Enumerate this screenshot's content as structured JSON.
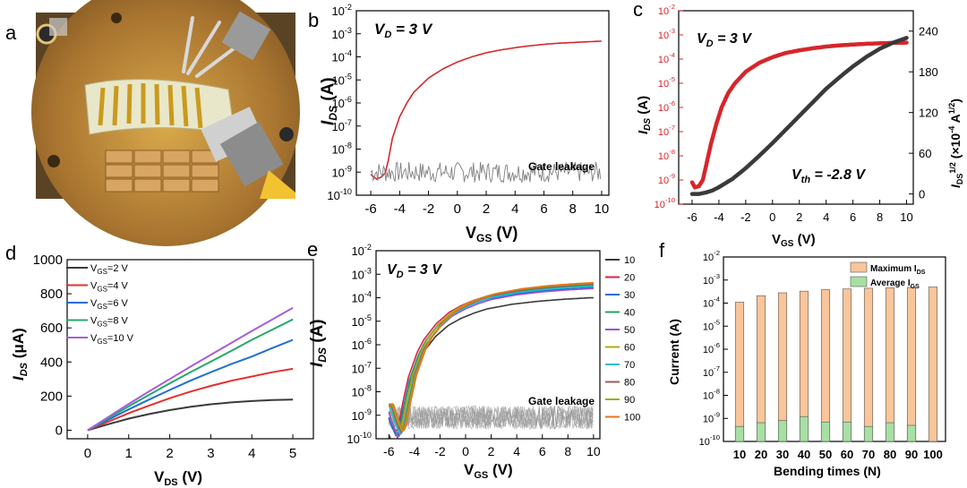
{
  "panels": {
    "a": {
      "letter": "a",
      "photo_description_icon": "probe-station-photo"
    },
    "b": {
      "letter": "b",
      "annotation": "V_D = 3 V",
      "ylabel": "I_DS (A)",
      "xlabel": "V_GS (V)",
      "leak_label": "Gate leakage"
    },
    "c": {
      "letter": "c",
      "annotation": "V_D = 3 V",
      "vth_label": "V_th = -2.8 V",
      "ylabel_left": "I_DS (A)",
      "ylabel_right": "I_DS^1/2 (×10^-4 A^1/2)",
      "xlabel": "V_GS (V)"
    },
    "d": {
      "letter": "d",
      "ylabel": "I_DS (μA)",
      "xlabel": "V_DS (V)"
    },
    "e": {
      "letter": "e",
      "annotation": "V_D = 3 V",
      "ylabel": "I_DS (A)",
      "xlabel": "V_GS (V)",
      "leak_label": "Gate leakage"
    },
    "f": {
      "letter": "f",
      "ylabel": "Current (A)",
      "xlabel": "Bending times (N)",
      "legend": [
        "Maximum I_DS",
        "Average I_GS"
      ]
    }
  },
  "colors": {
    "red": "#d6262b",
    "grey": "#7f7f7f",
    "dark": "#3a3a3a",
    "d_series": [
      "#3a3a3a",
      "#e3302f",
      "#1f6fd6",
      "#24a86b",
      "#a55fd8"
    ],
    "e_series": [
      "#3a3a3a",
      "#d8234a",
      "#1c6fd0",
      "#29a167",
      "#a24fd9",
      "#b5a80f",
      "#19c0d0",
      "#9a5c5c",
      "#8fb31a",
      "#e87417"
    ],
    "f_max": "#f9c59b",
    "f_avg": "#a8dfa3"
  },
  "chart_data": [
    {
      "panel": "b",
      "type": "line",
      "yscale": "log",
      "title": "",
      "xlabel": "V_GS (V)",
      "ylabel": "I_DS (A)",
      "xlim": [
        -7,
        10.5
      ],
      "ylim": [
        1e-10,
        0.01
      ],
      "xticks": [
        -6,
        -4,
        -2,
        0,
        2,
        4,
        6,
        8,
        10
      ],
      "yticks": [
        1e-10,
        1e-09,
        1e-08,
        1e-07,
        1e-06,
        1e-05,
        0.0001,
        0.001,
        0.01
      ],
      "series": [
        {
          "name": "I_DS",
          "color": "red",
          "x": [
            -6,
            -5.6,
            -5.3,
            -5.0,
            -4.8,
            -4.5,
            -4.0,
            -3.5,
            -3.0,
            -2.0,
            -1.0,
            0,
            1,
            2,
            3,
            4,
            5,
            6,
            7,
            8,
            9,
            10
          ],
          "y": [
            8e-10,
            5e-10,
            6e-10,
            9e-10,
            3e-09,
            3e-08,
            2.5e-07,
            1e-06,
            3e-06,
            1.2e-05,
            3e-05,
            6e-05,
            0.0001,
            0.00015,
            0.0002,
            0.00025,
            0.0003,
            0.00035,
            0.00039,
            0.00042,
            0.00045,
            0.00048
          ]
        },
        {
          "name": "Gate leakage",
          "color": "grey",
          "noise": true,
          "x_range": [
            -6,
            10
          ],
          "y_center": 1e-09,
          "y_spread_decades": 0.45
        }
      ]
    },
    {
      "panel": "c",
      "type": "line",
      "yscale": "log",
      "dual_axis": true,
      "xlabel": "V_GS (V)",
      "ylabel_left": "I_DS (A)",
      "ylabel_right": "I_DS^1/2 (×10^-4 A^1/2)",
      "xlim": [
        -7,
        10.5
      ],
      "ylim_left": [
        1e-10,
        0.01
      ],
      "ylim_right": [
        -15,
        270
      ],
      "xticks": [
        -6,
        -4,
        -2,
        0,
        2,
        4,
        6,
        8,
        10
      ],
      "yticks_left": [
        1e-10,
        1e-09,
        1e-08,
        1e-07,
        1e-06,
        1e-05,
        0.0001,
        0.001,
        0.01
      ],
      "yticks_right": [
        0,
        60,
        120,
        180,
        240
      ],
      "series": [
        {
          "name": "I_DS",
          "axis": "left",
          "color": "red",
          "x": [
            -6,
            -5.8,
            -5.5,
            -5.2,
            -5.0,
            -4.6,
            -4.2,
            -3.8,
            -3.3,
            -2.8,
            -2.0,
            -1.0,
            0,
            1,
            2,
            3,
            4,
            5,
            6,
            7,
            8,
            9,
            10
          ],
          "y": [
            8e-10,
            5e-10,
            5.5e-10,
            1e-09,
            3e-09,
            3e-08,
            2e-07,
            1e-06,
            4e-06,
            1e-05,
            3e-05,
            7e-05,
            0.00012,
            0.00018,
            0.00023,
            0.00028,
            0.00033,
            0.00037,
            0.0004,
            0.00043,
            0.00045,
            0.00047,
            0.00048
          ]
        },
        {
          "name": "sqrt(I_DS)",
          "axis": "right",
          "color": "dark",
          "x": [
            -6,
            -5.5,
            -5,
            -4.5,
            -4,
            -3,
            -2,
            -1,
            0,
            1,
            2,
            3,
            4,
            5,
            6,
            7,
            8,
            9,
            10
          ],
          "y": [
            0,
            0,
            2,
            5,
            10,
            22,
            38,
            56,
            75,
            95,
            115,
            135,
            155,
            172,
            188,
            202,
            214,
            223,
            230
          ]
        }
      ]
    },
    {
      "panel": "d",
      "type": "line",
      "xlabel": "V_DS (V)",
      "ylabel": "I_DS (μA)",
      "xlim": [
        -0.5,
        5.5
      ],
      "ylim": [
        -50,
        1000
      ],
      "xticks": [
        0,
        1,
        2,
        3,
        4,
        5
      ],
      "yticks": [
        0,
        200,
        400,
        600,
        800,
        1000
      ],
      "series": [
        {
          "name": "V_GS=2 V",
          "x": [
            0,
            0.5,
            1,
            1.5,
            2,
            2.5,
            3,
            3.5,
            4,
            4.5,
            5
          ],
          "y": [
            0,
            35,
            68,
            95,
            118,
            137,
            152,
            163,
            171,
            177,
            180
          ]
        },
        {
          "name": "V_GS=4 V",
          "x": [
            0,
            0.5,
            1,
            1.5,
            2,
            2.5,
            3,
            3.5,
            4,
            4.5,
            5
          ],
          "y": [
            0,
            50,
            100,
            145,
            188,
            226,
            260,
            290,
            315,
            340,
            360
          ]
        },
        {
          "name": "V_GS=6 V",
          "x": [
            0,
            0.5,
            1,
            1.5,
            2,
            2.5,
            3,
            3.5,
            4,
            4.5,
            5
          ],
          "y": [
            0,
            62,
            122,
            180,
            236,
            290,
            340,
            388,
            432,
            482,
            530
          ]
        },
        {
          "name": "V_GS=8 V",
          "x": [
            0,
            0.5,
            1,
            1.5,
            2,
            2.5,
            3,
            3.5,
            4,
            4.5,
            5
          ],
          "y": [
            0,
            70,
            140,
            208,
            275,
            340,
            402,
            465,
            530,
            590,
            650
          ]
        },
        {
          "name": "V_GS=10 V",
          "x": [
            0,
            0.5,
            1,
            1.5,
            2,
            2.5,
            3,
            3.5,
            4,
            4.5,
            5
          ],
          "y": [
            0,
            77,
            154,
            228,
            300,
            372,
            442,
            512,
            582,
            650,
            718
          ]
        }
      ]
    },
    {
      "panel": "e",
      "type": "line",
      "yscale": "log",
      "xlabel": "V_GS (V)",
      "ylabel": "I_DS (A)",
      "xlim": [
        -7,
        10.5
      ],
      "ylim": [
        1e-10,
        0.01
      ],
      "xticks": [
        -6,
        -4,
        -2,
        0,
        2,
        4,
        6,
        8,
        10
      ],
      "yticks": [
        1e-10,
        1e-09,
        1e-08,
        1e-07,
        1e-06,
        1e-05,
        0.0001,
        0.001,
        0.01
      ],
      "legend_title": "",
      "series_names": [
        "10",
        "20",
        "30",
        "40",
        "50",
        "60",
        "70",
        "80",
        "90",
        "100"
      ],
      "base_x": [
        -6,
        -5.6,
        -5.2,
        -5.0,
        -4.6,
        -4.2,
        -3.5,
        -3.0,
        -2.0,
        -1.0,
        0,
        1,
        2,
        4,
        6,
        8,
        10
      ],
      "base_y": [
        3e-09,
        6e-10,
        2e-10,
        4e-10,
        5e-09,
        5e-08,
        6e-07,
        2e-06,
        1e-05,
        3e-05,
        6e-05,
        0.0001,
        0.00015,
        0.00024,
        0.00032,
        0.00039,
        0.00045
      ],
      "series_scale": [
        0.22,
        0.8,
        0.6,
        0.75,
        0.55,
        0.9,
        0.7,
        0.85,
        0.95,
        1.0
      ],
      "leakage": {
        "name": "Gate leakage",
        "x_range": [
          -6,
          10
        ],
        "y_center": 8e-10,
        "y_spread_decades": 0.5,
        "traces": 10
      }
    },
    {
      "panel": "f",
      "type": "bar",
      "yscale": "log",
      "xlabel": "Bending times (N)",
      "ylabel": "Current (A)",
      "ylim": [
        1e-10,
        0.01
      ],
      "yticks": [
        1e-10,
        1e-09,
        1e-08,
        1e-07,
        1e-06,
        1e-05,
        0.0001,
        0.001,
        0.01
      ],
      "categories": [
        "10",
        "20",
        "30",
        "40",
        "50",
        "60",
        "70",
        "80",
        "90",
        "100"
      ],
      "series": [
        {
          "name": "Maximum I_DS",
          "values": [
            0.00011,
            0.00021,
            0.00028,
            0.00033,
            0.00038,
            0.00041,
            0.00044,
            0.00046,
            0.00048,
            0.0005
          ]
        },
        {
          "name": "Average I_GS",
          "values": [
            4.5e-10,
            6.5e-10,
            8e-10,
            1.2e-09,
            7e-10,
            7e-10,
            4.5e-10,
            6.5e-10,
            5e-10,
            0
          ]
        }
      ]
    }
  ]
}
